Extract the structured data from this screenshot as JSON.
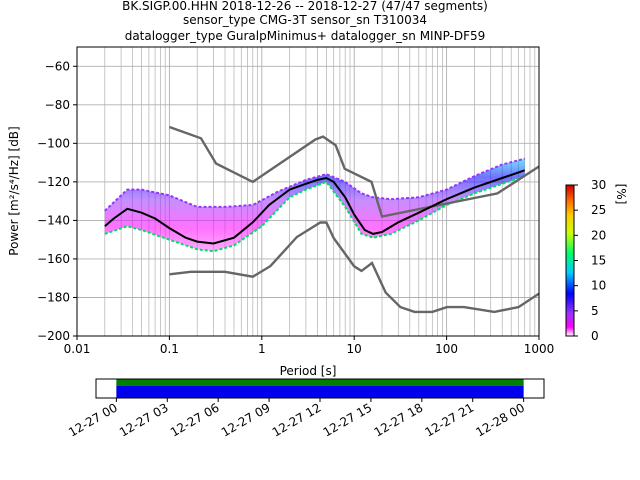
{
  "title": {
    "line1": "BK.SIGP.00.HHN   2018-12-26 -- 2018-12-27  (47/47 segments)",
    "line2": "sensor_type CMG-3T sensor_sn T310034",
    "line3": "datalogger_type GuralpMinimus+ datalogger_sn MINP-DF59"
  },
  "colors": {
    "noise_model": "#666666",
    "mean_line": "#000000",
    "colormap": [
      "#ffffff",
      "#ff00ff",
      "#9933ff",
      "#0000ff",
      "#00ccff",
      "#00ff66",
      "#ccff00",
      "#ffcc00",
      "#ff6600",
      "#cc0000"
    ],
    "coverage_data": "#0000ee",
    "coverage_processed": "#008000"
  },
  "chart_data": [
    {
      "type": "heatmap",
      "title": "",
      "xlabel": "Period [s]",
      "ylabel": "Power [m²/s⁴/Hz] [dB]",
      "x_scale": "log",
      "xlim": [
        0.01,
        1000
      ],
      "ylim": [
        -200,
        -50
      ],
      "x_ticks": [
        "0.01",
        "0.1",
        "1",
        "10",
        "100",
        "1000"
      ],
      "y_ticks": [
        "−200",
        "−180",
        "−160",
        "−140",
        "−120",
        "−100",
        "−80",
        "−60"
      ],
      "grid": true,
      "colorbar": {
        "label": "[%]",
        "range": [
          0,
          30
        ],
        "ticks": [
          "0",
          "5",
          "10",
          "15",
          "20",
          "25",
          "30"
        ]
      },
      "noise_model_high": {
        "x": [
          0.1,
          0.22,
          0.32,
          0.8,
          3.8,
          4.6,
          6.3,
          7.9,
          15.4,
          20,
          354.8,
          1000
        ],
        "y": [
          -91.5,
          -97.4,
          -110.5,
          -120,
          -98,
          -96.5,
          -101,
          -113.2,
          -120,
          -138,
          -126,
          -112
        ]
      },
      "noise_model_low": {
        "x": [
          0.1,
          0.17,
          0.4,
          0.8,
          1.24,
          2.4,
          4.3,
          5.0,
          6.0,
          10,
          12,
          15.6,
          21.9,
          31.6,
          45,
          70,
          101,
          154,
          328,
          600,
          1000
        ],
        "y": [
          -168,
          -166.7,
          -166.7,
          -169.2,
          -163.7,
          -148.6,
          -141.1,
          -141.1,
          -149.2,
          -163.8,
          -166.2,
          -162.1,
          -177.5,
          -185,
          -187.5,
          -187.5,
          -185,
          -185,
          -187.5,
          -185,
          -178
        ]
      },
      "mean_psd": {
        "x": [
          0.02,
          0.025,
          0.035,
          0.05,
          0.07,
          0.1,
          0.15,
          0.2,
          0.3,
          0.5,
          0.8,
          1.2,
          2,
          3,
          4,
          5,
          6,
          8,
          10,
          13,
          16,
          20,
          30,
          50,
          100,
          200,
          400,
          700
        ],
        "y": [
          -143,
          -139,
          -134,
          -136,
          -139,
          -144,
          -149,
          -151,
          -152,
          -149,
          -141,
          -132,
          -124,
          -121,
          -119,
          -118,
          -120,
          -128,
          -137,
          -145,
          -147,
          -146,
          -141,
          -136,
          -129,
          -123,
          -118,
          -114
        ]
      },
      "spread_high": {
        "x": [
          0.02,
          0.035,
          0.05,
          0.1,
          0.2,
          0.4,
          0.8,
          1.5,
          3,
          5,
          8,
          12,
          16,
          25,
          50,
          100,
          200,
          400,
          700
        ],
        "y": [
          -135,
          -124,
          -124,
          -127,
          -133,
          -133,
          -132,
          -125,
          -119,
          -116,
          -120,
          -126,
          -128,
          -129,
          -128,
          -124,
          -117,
          -111,
          -108
        ]
      },
      "spread_low": {
        "x": [
          0.02,
          0.035,
          0.05,
          0.1,
          0.2,
          0.3,
          0.5,
          1,
          2,
          3,
          5,
          8,
          12,
          16,
          25,
          50,
          100,
          200,
          400,
          700
        ],
        "y": [
          -147,
          -143,
          -145,
          -150,
          -155,
          -156,
          -153,
          -143,
          -128,
          -124,
          -120,
          -133,
          -147,
          -149,
          -147,
          -140,
          -132,
          -126,
          -121,
          -117
        ]
      }
    },
    {
      "type": "bar",
      "title": "",
      "xlabel": "",
      "ylabel": "",
      "x_ticks": [
        "12-27 00",
        "12-27 03",
        "12-27 06",
        "12-27 09",
        "12-27 12",
        "12-27 15",
        "12-27 18",
        "12-27 21",
        "12-28 00"
      ],
      "x_range_hours": [
        -1.2,
        25.2
      ],
      "bars": [
        {
          "start_hour": 0,
          "end_hour": 24,
          "layer": "processed"
        },
        {
          "start_hour": 0,
          "end_hour": 24,
          "layer": "data"
        }
      ]
    }
  ]
}
